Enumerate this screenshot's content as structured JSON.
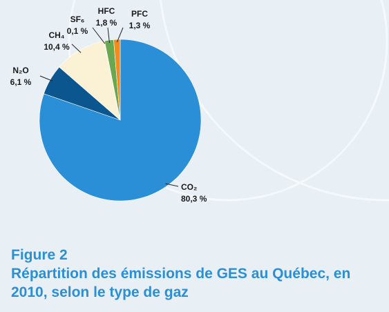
{
  "chart_data": {
    "type": "pie",
    "title": "Figure 2",
    "subtitle": "Répartition des émissions de GES au Québec, en 2010, selon le type de gaz",
    "categories": [
      "CO₂",
      "N₂O",
      "CH₄",
      "SF₆",
      "HFC",
      "PFC"
    ],
    "values": [
      80.3,
      6.1,
      10.4,
      0.1,
      1.8,
      1.3
    ],
    "value_labels": [
      "80,3 %",
      "6,1 %",
      "10,4 %",
      "0,1 %",
      "1,8 %",
      "1,3 %"
    ],
    "colors": [
      "#2a8fd6",
      "#0c5690",
      "#fbf2d5",
      "#3f7a3a",
      "#6aa84f",
      "#f28c1e"
    ]
  }
}
